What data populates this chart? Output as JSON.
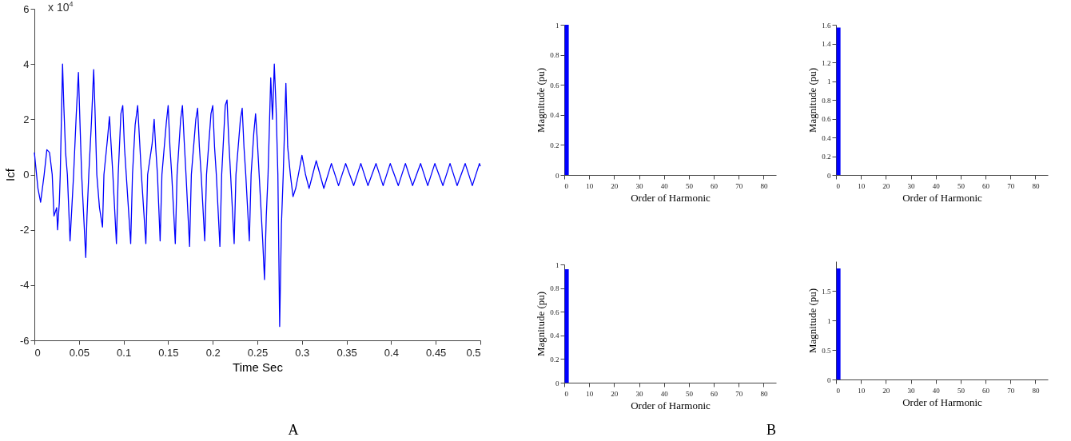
{
  "chart_data": [
    {
      "type": "line",
      "xlabel": "Time Sec",
      "ylabel": "Icf",
      "color": "#0000ff",
      "xlim": [
        0,
        0.5
      ],
      "xticks": [
        0,
        0.05,
        0.1,
        0.15,
        0.2,
        0.25,
        0.3,
        0.35,
        0.4,
        0.45,
        0.5
      ],
      "ylim": [
        -6,
        6
      ],
      "yticks": [
        -6,
        -4,
        -2,
        0,
        2,
        4,
        6
      ],
      "annotations": [
        "x 10$^{4}$",
        "A"
      ],
      "x": [
        0,
        0.004,
        0.007,
        0.011,
        0.014,
        0.017,
        0.02,
        0.022,
        0.025,
        0.026,
        0.028,
        0.029,
        0.03,
        0.0316,
        0.033,
        0.035,
        0.037,
        0.04,
        0.042,
        0.044,
        0.047,
        0.0494,
        0.051,
        0.053,
        0.0576,
        0.059,
        0.061,
        0.064,
        0.0665,
        0.068,
        0.07,
        0.073,
        0.0764,
        0.078,
        0.082,
        0.0842,
        0.086,
        0.088,
        0.092,
        0.094,
        0.097,
        0.0991,
        0.101,
        0.103,
        0.108,
        0.11,
        0.113,
        0.1158,
        0.118,
        0.12,
        0.125,
        0.127,
        0.132,
        0.1343,
        0.136,
        0.138,
        0.141,
        0.143,
        0.148,
        0.15,
        0.152,
        0.154,
        0.158,
        0.16,
        0.164,
        0.166,
        0.168,
        0.17,
        0.174,
        0.176,
        0.181,
        0.183,
        0.185,
        0.187,
        0.191,
        0.193,
        0.198,
        0.2,
        0.202,
        0.204,
        0.208,
        0.21,
        0.214,
        0.216,
        0.218,
        0.22,
        0.224,
        0.226,
        0.231,
        0.233,
        0.235,
        0.237,
        0.241,
        0.243,
        0.246,
        0.248,
        0.25,
        0.252,
        0.256,
        0.258,
        0.26,
        0.262,
        0.265,
        0.267,
        0.269,
        0.271,
        0.273,
        0.275,
        0.277,
        0.279,
        0.282,
        0.284,
        0.287,
        0.29,
        0.293,
        0.296,
        0.3,
        0.304,
        0.308,
        0.312,
        0.316,
        0.3245,
        0.333,
        0.341,
        0.349,
        0.358,
        0.366,
        0.374,
        0.383,
        0.391,
        0.399,
        0.408,
        0.416,
        0.424,
        0.433,
        0.441,
        0.449,
        0.458,
        0.466,
        0.474,
        0.483,
        0.491,
        0.499,
        0.5
      ],
      "values": [
        0.8,
        -0.5,
        -1.0,
        0,
        0.9,
        0.8,
        0,
        -1.5,
        -1.2,
        -2.0,
        -1.0,
        0,
        1.5,
        4.0,
        2.5,
        0.8,
        0,
        -2.4,
        -1.2,
        0,
        2.2,
        3.7,
        2.0,
        0,
        -3.0,
        -1.5,
        0,
        1.9,
        3.8,
        2.3,
        0,
        -1.2,
        -1.9,
        0,
        1.3,
        2.1,
        1.1,
        0,
        -2.5,
        0,
        2.2,
        2.5,
        1.0,
        0,
        -2.5,
        0,
        1.8,
        2.5,
        1.2,
        0,
        -2.5,
        0,
        1.1,
        2.0,
        1.0,
        0,
        -2.4,
        0,
        1.9,
        2.5,
        1.0,
        0,
        -2.5,
        0,
        2.0,
        2.5,
        1.2,
        0,
        -2.6,
        0,
        2.0,
        2.4,
        1.0,
        0,
        -2.4,
        0,
        2.2,
        2.5,
        1.0,
        0,
        -2.6,
        0,
        2.5,
        2.7,
        1.2,
        0,
        -2.5,
        0,
        2.0,
        2.4,
        1.0,
        0,
        -2.4,
        0,
        1.5,
        2.2,
        1.2,
        0,
        -2.4,
        -3.8,
        -1.5,
        0,
        3.5,
        2.0,
        4.0,
        2.4,
        0,
        -5.5,
        -1.8,
        0,
        3.3,
        1.0,
        0,
        -0.8,
        -0.5,
        0,
        0.7,
        0,
        -0.5,
        0,
        0.5,
        -0.5,
        0.4,
        -0.4,
        0.4,
        -0.4,
        0.4,
        -0.4,
        0.4,
        -0.4,
        0.4,
        -0.4,
        0.4,
        -0.4,
        0.4,
        -0.4,
        0.4,
        -0.4,
        0.4,
        -0.4,
        0.4,
        -0.4,
        0.4,
        0.3
      ]
    },
    {
      "type": "bar",
      "xlabel": "Order of Harmonic",
      "ylabel": "Magnitude (pu)",
      "color": "#0000ff",
      "x": [
        1
      ],
      "values": [
        1.0
      ],
      "xlim": [
        0,
        85
      ],
      "xticks": [
        0,
        10,
        20,
        30,
        40,
        50,
        60,
        70,
        80
      ],
      "ylim": [
        0,
        1
      ],
      "yticks": [
        0,
        0.2,
        0.4,
        0.6,
        0.8,
        1
      ],
      "annotations": [
        "B"
      ]
    },
    {
      "type": "bar",
      "xlabel": "Order of Harmonic",
      "ylabel": "Magnitude (pu)",
      "color": "#0000ff",
      "x": [
        1
      ],
      "values": [
        1.57
      ],
      "xlim": [
        0,
        85
      ],
      "xticks": [
        0,
        10,
        20,
        30,
        40,
        50,
        60,
        70,
        80
      ],
      "ylim": [
        0,
        1.6
      ],
      "yticks": [
        0,
        0.2,
        0.4,
        0.6,
        0.8,
        1,
        1.2,
        1.4,
        1.6
      ]
    },
    {
      "type": "bar",
      "xlabel": "Order of Harmonic",
      "ylabel": "Magnitude (pu)",
      "color": "#0000ff",
      "x": [
        1
      ],
      "values": [
        0.96
      ],
      "xlim": [
        0,
        85
      ],
      "xticks": [
        0,
        10,
        20,
        30,
        40,
        50,
        60,
        70,
        80
      ],
      "ylim": [
        0,
        1
      ],
      "yticks": [
        0,
        0.2,
        0.4,
        0.6,
        0.8,
        1
      ]
    },
    {
      "type": "bar",
      "xlabel": "Order of Harmonic",
      "ylabel": "Magnitude (pu)",
      "color": "#0000ff",
      "x": [
        1
      ],
      "values": [
        1.88
      ],
      "xlim": [
        0,
        85
      ],
      "xticks": [
        0,
        10,
        20,
        30,
        40,
        50,
        60,
        70,
        80
      ],
      "ylim": [
        0,
        2
      ],
      "yticks": [
        0,
        0.5,
        1,
        1.5
      ]
    }
  ]
}
